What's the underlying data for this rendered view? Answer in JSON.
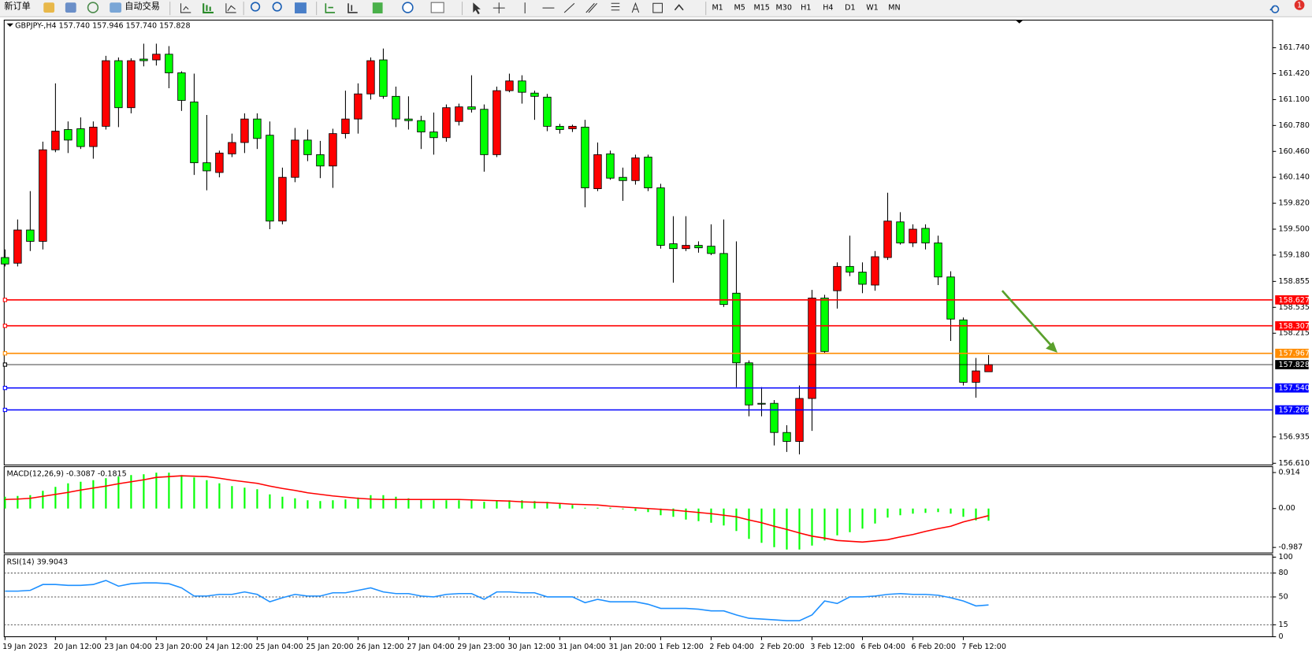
{
  "toolbar": {
    "new_order": "新订单",
    "auto_trading": "自动交易",
    "timeframes": [
      "M1",
      "M5",
      "M15",
      "M30",
      "H1",
      "H4",
      "D1",
      "W1",
      "MN"
    ],
    "notification": "1"
  },
  "chart_data": [
    {
      "type": "candlestick",
      "title": "GBPJPY-,H4  157.740 157.946 157.740 157.828",
      "categories": [
        "19 Jan 2023",
        null,
        null,
        null,
        "20 Jan 12:00",
        null,
        null,
        null,
        "23 Jan 04:00",
        null,
        null,
        null,
        "23 Jan 20:00",
        null,
        null,
        null,
        "24 Jan 12:00",
        null,
        null,
        null,
        "25 Jan 04:00",
        null,
        null,
        null,
        "25 Jan 20:00",
        null,
        null,
        null,
        "26 Jan 12:00",
        null,
        null,
        null,
        "27 Jan 04:00",
        null,
        null,
        null,
        "29 Jan 23:00",
        null,
        null,
        null,
        "30 Jan 12:00",
        null,
        null,
        null,
        "31 Jan 04:00",
        null,
        null,
        null,
        "31 Jan 20:00",
        null,
        null,
        null,
        "1 Feb 12:00",
        null,
        null,
        null,
        "2 Feb 04:00",
        null,
        null,
        null,
        "2 Feb 20:00",
        null,
        null,
        null,
        "3 Feb 12:00",
        null,
        null,
        null,
        "6 Feb 04:00",
        null,
        null,
        null,
        "6 Feb 20:00",
        null,
        null,
        null,
        "7 Feb 12:00",
        null,
        null
      ],
      "open": [
        159.15,
        159.08,
        159.49,
        159.35,
        160.48,
        160.73,
        160.74,
        160.52,
        160.77,
        161.58,
        161.0,
        161.6,
        161.59,
        161.66,
        161.43,
        161.07,
        160.32,
        160.2,
        160.43,
        160.57,
        160.86,
        160.66,
        159.6,
        160.14,
        160.6,
        160.42,
        160.28,
        160.68,
        160.86,
        161.17,
        161.59,
        161.14,
        160.86,
        160.84,
        160.7,
        160.63,
        160.83,
        161.01,
        160.98,
        160.42,
        161.21,
        161.33,
        161.18,
        161.13,
        160.77,
        160.74,
        160.76,
        160.0,
        160.43,
        160.14,
        160.1,
        160.39,
        160.01,
        159.32,
        159.26,
        159.3,
        159.29,
        159.2,
        158.71,
        157.85,
        157.35,
        157.35,
        156.99,
        156.88,
        157.41,
        158.65,
        158.74,
        159.04,
        158.97,
        158.81,
        159.15,
        159.59,
        159.33,
        159.51,
        159.33,
        158.91,
        158.38,
        157.61,
        157.74
      ],
      "high": [
        159.25,
        159.62,
        159.97,
        160.58,
        161.3,
        160.83,
        160.88,
        160.83,
        161.64,
        161.62,
        161.61,
        161.79,
        161.79,
        161.76,
        161.45,
        161.42,
        160.91,
        160.47,
        160.68,
        160.93,
        160.93,
        160.83,
        160.26,
        160.75,
        160.73,
        160.59,
        160.74,
        161.21,
        161.3,
        161.62,
        161.73,
        161.26,
        161.14,
        160.9,
        160.94,
        161.04,
        161.05,
        161.4,
        161.04,
        161.26,
        161.42,
        161.4,
        161.21,
        161.17,
        160.8,
        160.79,
        160.85,
        160.57,
        160.47,
        160.26,
        160.42,
        160.42,
        160.06,
        159.66,
        159.66,
        159.35,
        159.56,
        159.62,
        159.35,
        157.88,
        157.55,
        157.39,
        157.08,
        157.57,
        158.75,
        158.69,
        159.09,
        159.42,
        159.09,
        159.23,
        159.95,
        159.71,
        159.56,
        159.56,
        159.42,
        158.98,
        158.41,
        157.91,
        157.946
      ],
      "low": [
        159.04,
        159.04,
        159.23,
        159.25,
        160.45,
        160.44,
        160.49,
        160.37,
        160.73,
        160.76,
        160.93,
        161.51,
        161.52,
        161.24,
        160.96,
        160.17,
        159.98,
        160.14,
        160.39,
        160.44,
        160.49,
        159.5,
        159.56,
        160.08,
        160.34,
        160.13,
        160.01,
        160.62,
        160.68,
        161.1,
        161.11,
        160.76,
        160.73,
        160.49,
        160.42,
        160.58,
        160.78,
        160.94,
        160.21,
        160.39,
        161.19,
        161.05,
        160.85,
        160.71,
        160.68,
        160.7,
        159.77,
        159.97,
        160.11,
        159.85,
        160.05,
        159.97,
        159.26,
        158.84,
        159.23,
        159.21,
        159.18,
        158.54,
        157.55,
        157.19,
        157.19,
        156.83,
        156.75,
        156.72,
        157.01,
        157.96,
        158.52,
        158.92,
        158.71,
        158.74,
        159.12,
        159.31,
        159.28,
        159.25,
        158.81,
        158.12,
        157.57,
        157.42,
        157.74
      ],
      "close": [
        159.07,
        159.49,
        159.35,
        160.48,
        160.71,
        160.6,
        160.52,
        160.76,
        161.58,
        161.0,
        161.58,
        161.58,
        161.66,
        161.43,
        161.09,
        160.32,
        160.22,
        160.44,
        160.57,
        160.86,
        160.62,
        159.6,
        160.14,
        160.6,
        160.42,
        160.28,
        160.68,
        160.86,
        161.17,
        161.58,
        161.14,
        160.86,
        160.84,
        160.7,
        160.63,
        161.0,
        161.01,
        160.98,
        160.42,
        161.21,
        161.33,
        161.19,
        161.14,
        160.77,
        160.73,
        160.77,
        160.01,
        160.42,
        160.13,
        160.1,
        160.38,
        160.01,
        159.3,
        159.26,
        159.3,
        159.27,
        159.2,
        158.57,
        157.85,
        157.33,
        157.34,
        156.99,
        156.88,
        157.41,
        158.65,
        157.99,
        159.04,
        158.97,
        158.82,
        159.16,
        159.6,
        159.33,
        159.5,
        159.33,
        158.91,
        158.39,
        157.61,
        157.75,
        157.828
      ],
      "up_color": "#ff0000",
      "down_color": "#00ff00",
      "ylim": [
        156.589,
        162.081
      ],
      "yticks": [
        {
          "value": 161.74,
          "label": "161.740"
        },
        {
          "value": 161.42,
          "label": "161.420"
        },
        {
          "value": 161.1,
          "label": "161.100"
        },
        {
          "value": 160.78,
          "label": "160.780"
        },
        {
          "value": 160.46,
          "label": "160.460"
        },
        {
          "value": 160.14,
          "label": "160.140"
        },
        {
          "value": 159.82,
          "label": "159.820"
        },
        {
          "value": 159.5,
          "label": "159.500"
        },
        {
          "value": 159.18,
          "label": "159.180"
        },
        158.855,
        158.535,
        158.215,
        156.935,
        {
          "value": 156.61,
          "label": "156.610"
        }
      ],
      "hlines": [
        {
          "value": 158.627,
          "label": "158.627",
          "color": "#ff0000"
        },
        {
          "value": 158.307,
          "label": "158.307",
          "color": "#ff0000"
        },
        {
          "value": 157.967,
          "label": "157.967",
          "color": "#ff8c00"
        },
        {
          "value": 157.54,
          "label": "157.540",
          "color": "#0000ff"
        },
        {
          "value": 157.269,
          "label": "157.269",
          "color": "#0000ff"
        }
      ],
      "current_price": {
        "value": 157.828,
        "label": "157.828",
        "color": "#000000"
      }
    },
    {
      "type": "macd",
      "title": "MACD(12,26,9) -0.3087 -0.1815",
      "histogram": {
        "color": "#00ff00",
        "values": [
          0.3,
          0.32,
          0.34,
          0.45,
          0.55,
          0.64,
          0.68,
          0.72,
          0.77,
          0.81,
          0.85,
          0.87,
          0.91,
          0.91,
          0.85,
          0.79,
          0.72,
          0.64,
          0.57,
          0.53,
          0.49,
          0.36,
          0.3,
          0.26,
          0.21,
          0.19,
          0.21,
          0.23,
          0.28,
          0.34,
          0.34,
          0.3,
          0.26,
          0.23,
          0.21,
          0.21,
          0.21,
          0.21,
          0.17,
          0.19,
          0.21,
          0.21,
          0.19,
          0.17,
          0.13,
          0.09,
          0.02,
          0.02,
          0.02,
          -0.02,
          -0.06,
          -0.09,
          -0.17,
          -0.21,
          -0.28,
          -0.32,
          -0.36,
          -0.43,
          -0.57,
          -0.77,
          -0.87,
          -0.98,
          -1.04,
          -1.04,
          -0.94,
          -0.81,
          -0.68,
          -0.6,
          -0.51,
          -0.38,
          -0.23,
          -0.17,
          -0.13,
          -0.11,
          -0.09,
          -0.13,
          -0.21,
          -0.3,
          -0.3087
        ]
      },
      "signal": {
        "color": "#ff0000",
        "values": [
          0.23,
          0.24,
          0.26,
          0.31,
          0.36,
          0.41,
          0.47,
          0.52,
          0.57,
          0.63,
          0.68,
          0.73,
          0.79,
          0.81,
          0.83,
          0.82,
          0.81,
          0.77,
          0.72,
          0.68,
          0.64,
          0.57,
          0.51,
          0.46,
          0.4,
          0.36,
          0.32,
          0.29,
          0.26,
          0.24,
          0.23,
          0.23,
          0.23,
          0.23,
          0.23,
          0.23,
          0.23,
          0.22,
          0.21,
          0.2,
          0.19,
          0.17,
          0.16,
          0.15,
          0.13,
          0.11,
          0.1,
          0.09,
          0.06,
          0.04,
          0.02,
          0,
          -0.02,
          -0.04,
          -0.07,
          -0.1,
          -0.13,
          -0.17,
          -0.21,
          -0.29,
          -0.36,
          -0.45,
          -0.53,
          -0.62,
          -0.7,
          -0.75,
          -0.81,
          -0.83,
          -0.85,
          -0.82,
          -0.79,
          -0.72,
          -0.66,
          -0.58,
          -0.51,
          -0.45,
          -0.34,
          -0.26,
          -0.1815
        ]
      },
      "ylim": [
        -1.127,
        1.063
      ],
      "yticks": [
        0.914,
        {
          "value": 0,
          "label": "0.00"
        },
        -0.987
      ]
    },
    {
      "type": "line",
      "title": "RSI(14) 39.9043",
      "color": "#1e90ff",
      "values": [
        57.3,
        57.3,
        58.3,
        65.6,
        65.6,
        64.5,
        64.5,
        65.6,
        70.7,
        63.5,
        66.6,
        67.6,
        67.6,
        66.6,
        61.4,
        51.1,
        51.1,
        53.2,
        53.2,
        56.3,
        53.2,
        43.9,
        49.0,
        53.2,
        51.1,
        51.1,
        55.2,
        55.2,
        58.3,
        61.4,
        56.3,
        54.2,
        54.2,
        51.1,
        50.1,
        53.2,
        54.2,
        54.2,
        47.0,
        56.3,
        56.3,
        55.2,
        55.2,
        50.1,
        50.1,
        50.1,
        42.8,
        47.0,
        43.9,
        43.9,
        43.9,
        40.8,
        35.6,
        35.6,
        35.6,
        34.6,
        32.5,
        32.5,
        27.4,
        23.2,
        22.2,
        21.2,
        20.1,
        20.1,
        27.4,
        44.9,
        41.8,
        50.1,
        50.1,
        51.1,
        53.2,
        54.2,
        53.2,
        53.2,
        52.1,
        49.0,
        44.9,
        38.7,
        39.9043
      ],
      "ylim": [
        0,
        100
      ],
      "yticks": [
        100,
        80,
        50,
        15,
        0
      ],
      "levels": [
        80,
        50,
        15
      ]
    }
  ]
}
